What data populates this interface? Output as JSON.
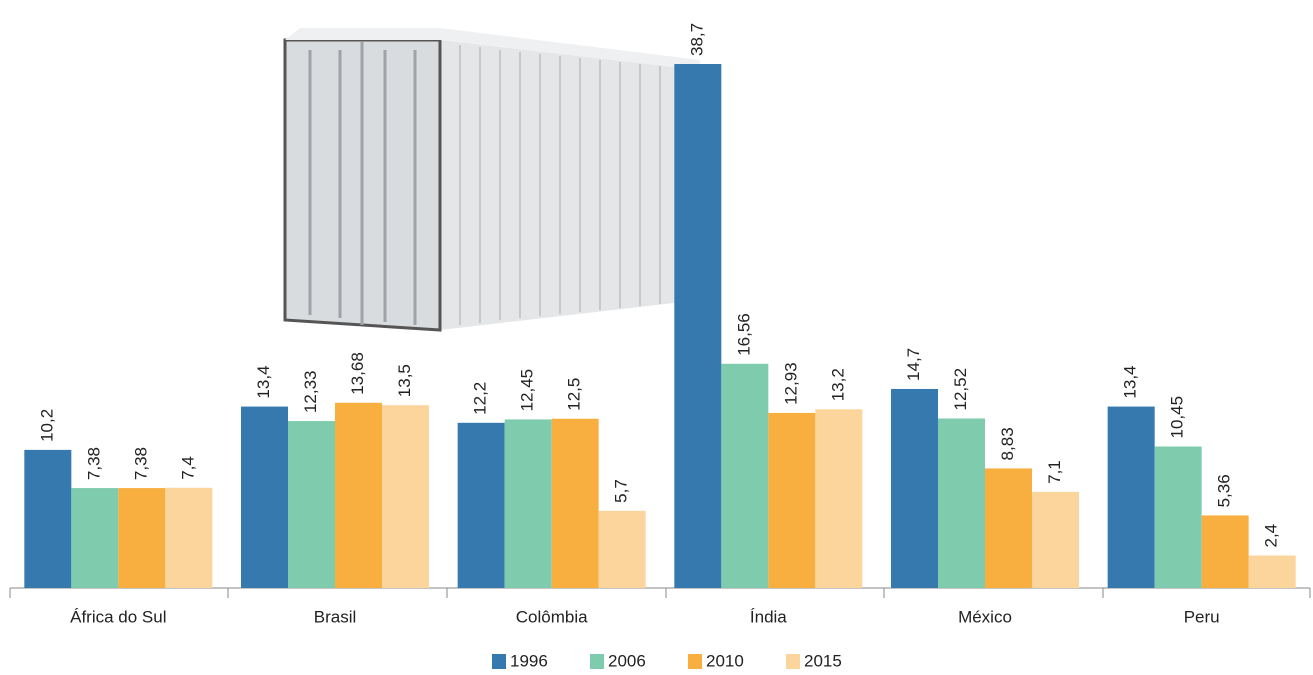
{
  "chart_data": {
    "type": "bar",
    "categories": [
      "África do Sul",
      "Brasil",
      "Colômbia",
      "Índia",
      "México",
      "Peru"
    ],
    "series": [
      {
        "name": "1996",
        "color": "#3579ae",
        "values": [
          10.2,
          13.4,
          12.2,
          38.7,
          14.7,
          13.4
        ],
        "value_labels": [
          "10,2",
          "13,4",
          "12,2",
          "38,7",
          "14,7",
          "13,4"
        ]
      },
      {
        "name": "2006",
        "color": "#7ecbae",
        "values": [
          7.38,
          12.33,
          12.45,
          16.56,
          12.52,
          10.45
        ],
        "value_labels": [
          "7,38",
          "12,33",
          "12,45",
          "16,56",
          "12,52",
          "10,45"
        ]
      },
      {
        "name": "2010",
        "color": "#f9ae40",
        "values": [
          7.38,
          13.68,
          12.5,
          12.93,
          8.83,
          5.36
        ],
        "value_labels": [
          "7,38",
          "13,68",
          "12,5",
          "12,93",
          "8,83",
          "5,36"
        ]
      },
      {
        "name": "2015",
        "color": "#fbd59c",
        "values": [
          7.4,
          13.5,
          5.7,
          13.2,
          7.1,
          2.4
        ],
        "value_labels": [
          "7,4",
          "13,5",
          "5,7",
          "13,2",
          "7,1",
          "2,4"
        ]
      }
    ]
  }
}
